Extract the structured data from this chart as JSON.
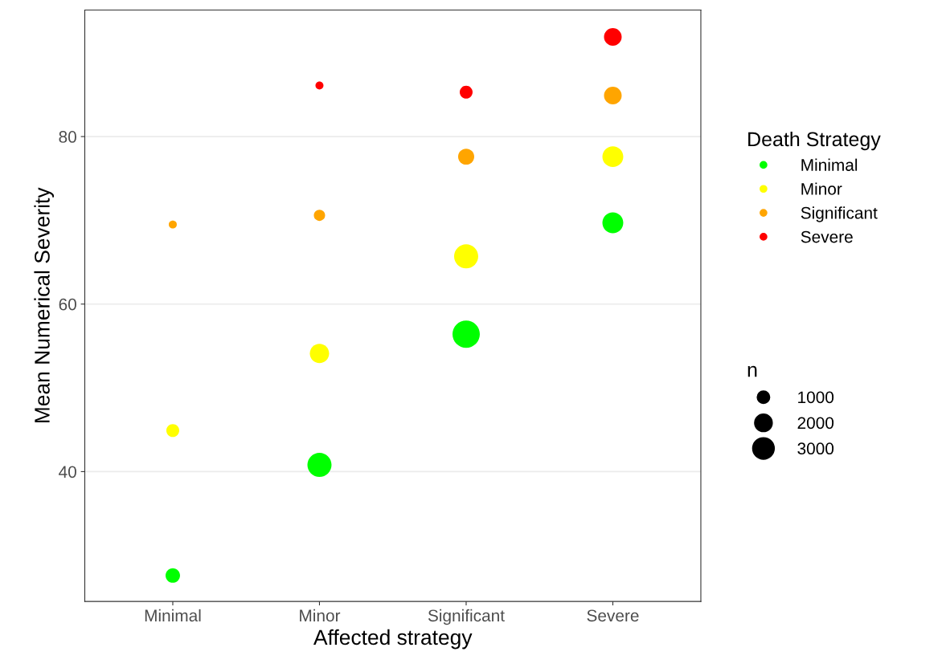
{
  "chart_data": {
    "type": "bubble",
    "xlabel": "Affected strategy",
    "ylabel": "Mean Numerical Severity",
    "categories": [
      "Minimal",
      "Minor",
      "Significant",
      "Severe"
    ],
    "series": [
      {
        "name": "Minimal",
        "color": "#00ff00",
        "values": [
          27.6,
          40.8,
          56.4,
          69.7
        ],
        "sizes": [
          1340,
          3720,
          4780,
          2790
        ]
      },
      {
        "name": "Minor",
        "color": "#ffff00",
        "values": [
          44.9,
          54.1,
          65.7,
          77.6
        ],
        "sizes": [
          1060,
          2380,
          3720,
          2790
        ]
      },
      {
        "name": "Significant",
        "color": "#ffa500",
        "values": [
          69.5,
          70.6,
          77.6,
          84.9
        ],
        "sizes": [
          410,
          810,
          1650,
          2000
        ]
      },
      {
        "name": "Severe",
        "color": "#ff0000",
        "values": [
          null,
          86.1,
          85.3,
          91.9
        ],
        "sizes": [
          null,
          410,
          1060,
          2000
        ]
      }
    ],
    "ylim": [
      24.5,
      95.1
    ],
    "yticks": [
      40,
      60,
      80
    ],
    "grid": "y",
    "legend": "right",
    "legend_title": "Death Strategy",
    "size_legend": [
      1000,
      2000,
      3000
    ],
    "annotations": [
      "n"
    ]
  }
}
